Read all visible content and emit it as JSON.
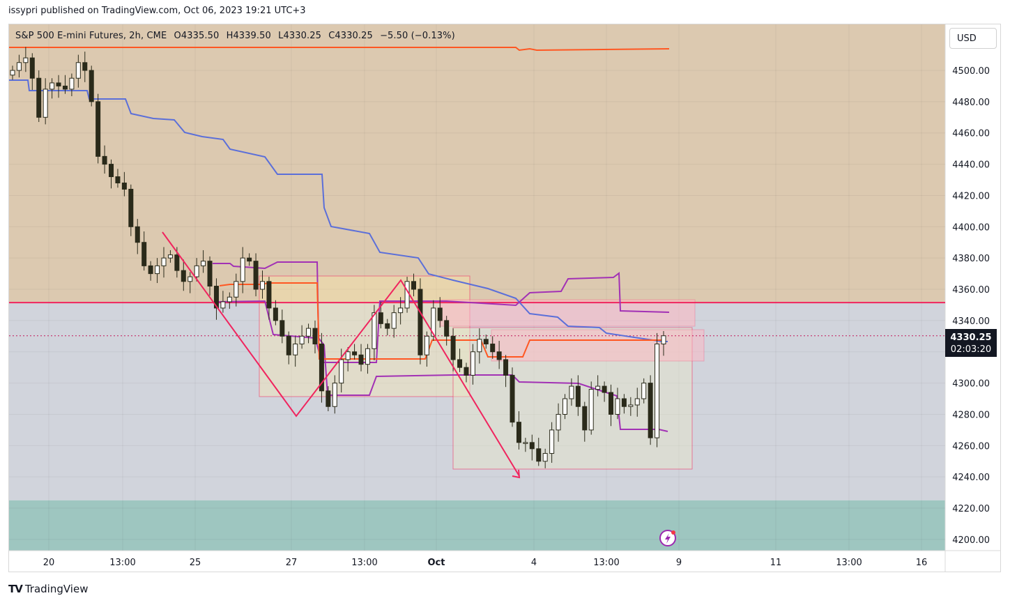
{
  "published": "issypri published on TradingView.com, Oct 06, 2023 19:21 UTC+3",
  "legend": {
    "symbol": "S&P 500 E-mini Futures, 2h, CME",
    "open": "O4335.50",
    "high": "H4339.50",
    "low": "L4330.25",
    "close": "C4330.25",
    "change": "−5.50 (−0.13%)"
  },
  "currency_button": "USD",
  "last_price_label": "4330.25",
  "countdown_label": "02:03:20",
  "footer_brand": "TradingView",
  "colors": {
    "upper_zone": "#dcc9b0",
    "lower_zone": "#d1d4dc",
    "support_zone": "#9ec6c0",
    "red_line": "#f0245e",
    "orange_line": "#ff5722",
    "blue_line": "#5b6fd9",
    "purple_line": "#a231b5",
    "candle": "#2a2a1a"
  },
  "chart_data": {
    "type": "candlestick",
    "instrument": "S&P 500 E-mini Futures",
    "timeframe": "2h",
    "y_ticks": [
      "4500.00",
      "4480.00",
      "4460.00",
      "4440.00",
      "4420.00",
      "4400.00",
      "4380.00",
      "4360.00",
      "4340.00",
      "4320.00",
      "4300.00",
      "4280.00",
      "4260.00",
      "4240.00",
      "4220.00",
      "4200.00"
    ],
    "x_ticks": [
      "20",
      "13:00",
      "25",
      "27",
      "13:00",
      "Oct",
      "4",
      "13:00",
      "9",
      "11",
      "13:00",
      "16"
    ],
    "ylim": [
      4194,
      4528
    ],
    "last_price": 4330.25,
    "horizontal_levels": {
      "resistance_line": 4351.5,
      "upper_zone_bottom": 4351.5,
      "support_zone": [
        4194,
        4225
      ]
    },
    "approx_closes": [
      4500,
      4505,
      4508,
      4495,
      4470,
      4488,
      4492,
      4490,
      4488,
      4495,
      4505,
      4500,
      4480,
      4445,
      4440,
      4432,
      4428,
      4424,
      4400,
      4390,
      4375,
      4370,
      4375,
      4380,
      4382,
      4372,
      4365,
      4368,
      4375,
      4378,
      4362,
      4348,
      4352,
      4355,
      4365,
      4380,
      4378,
      4360,
      4365,
      4348,
      4340,
      4330,
      4318,
      4325,
      4330,
      4335,
      4325,
      4295,
      4285,
      4300,
      4315,
      4320,
      4318,
      4312,
      4322,
      4345,
      4338,
      4335,
      4345,
      4348,
      4365,
      4360,
      4318,
      4330,
      4348,
      4340,
      4330,
      4315,
      4310,
      4305,
      4320,
      4328,
      4325,
      4320,
      4315,
      4305,
      4275,
      4262,
      4262,
      4258,
      4250,
      4255,
      4270,
      4280,
      4290,
      4298,
      4285,
      4270,
      4296,
      4298,
      4294,
      4280,
      4290,
      4285,
      4286,
      4290,
      4300,
      4265,
      4325,
      4330.25
    ]
  }
}
